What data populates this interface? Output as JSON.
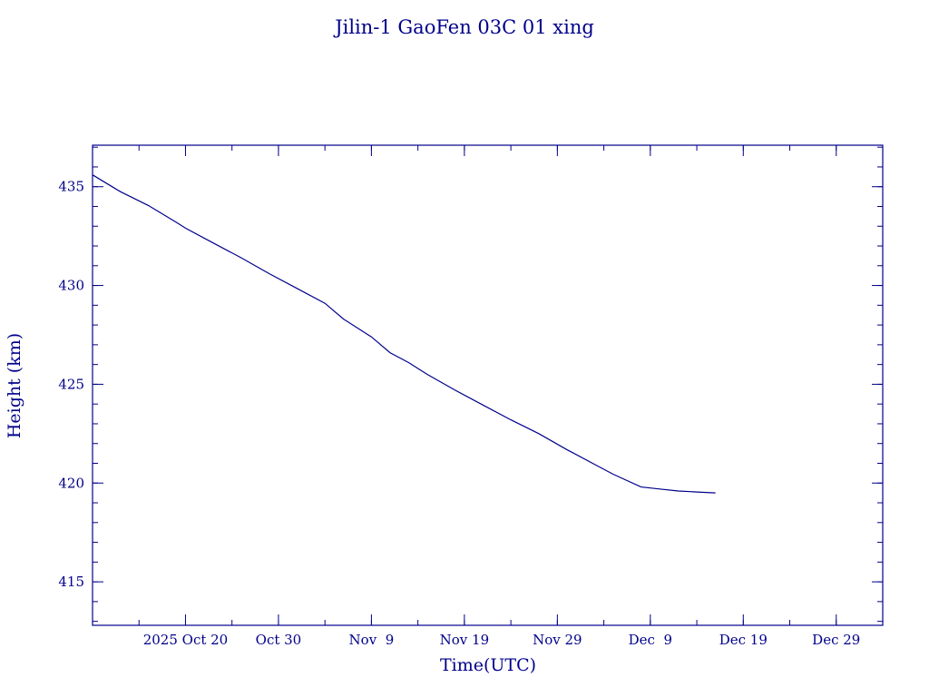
{
  "colors": {
    "ink": "#00008b",
    "background": "#ffffff"
  },
  "chart_data": {
    "type": "line",
    "title": "Jilin-1 GaoFen 03C 01 xing",
    "xlabel": "Time(UTC)",
    "ylabel": "Height (km)",
    "xlim": [
      "2025-10-10",
      "2026-01-03"
    ],
    "ylim": [
      412.8,
      437.1
    ],
    "grid": false,
    "legend": "none",
    "x_ticks": [
      {
        "date": "2025-10-20",
        "label": "2025 Oct 20"
      },
      {
        "date": "2025-10-30",
        "label": "Oct 30"
      },
      {
        "date": "2025-11-09",
        "label": "Nov  9"
      },
      {
        "date": "2025-11-19",
        "label": "Nov 19"
      },
      {
        "date": "2025-11-29",
        "label": "Nov 29"
      },
      {
        "date": "2025-12-09",
        "label": "Dec  9"
      },
      {
        "date": "2025-12-19",
        "label": "Dec 19"
      },
      {
        "date": "2025-12-29",
        "label": "Dec 29"
      }
    ],
    "y_ticks": [
      415,
      420,
      425,
      430,
      435
    ],
    "y_minor_step": 1,
    "x_minor_step_days": 5,
    "series": [
      {
        "x": [
          "2025-10-10",
          "2025-10-13",
          "2025-10-16",
          "2025-10-19",
          "2025-10-20",
          "2025-10-23",
          "2025-10-26",
          "2025-10-29",
          "2025-11-01",
          "2025-11-04",
          "2025-11-06",
          "2025-11-09",
          "2025-11-11",
          "2025-11-13",
          "2025-11-15",
          "2025-11-18",
          "2025-11-21",
          "2025-11-24",
          "2025-11-27",
          "2025-11-30",
          "2025-12-03",
          "2025-12-05",
          "2025-12-08",
          "2025-12-10",
          "2025-12-12",
          "2025-12-14",
          "2025-12-16"
        ],
        "y": [
          435.6,
          434.75,
          434.05,
          433.2,
          432.9,
          432.15,
          431.4,
          430.6,
          429.85,
          429.1,
          428.3,
          427.4,
          426.6,
          426.1,
          425.5,
          424.7,
          423.95,
          423.2,
          422.5,
          421.7,
          420.95,
          420.45,
          419.8,
          419.7,
          419.6,
          419.55,
          419.5
        ]
      }
    ]
  }
}
